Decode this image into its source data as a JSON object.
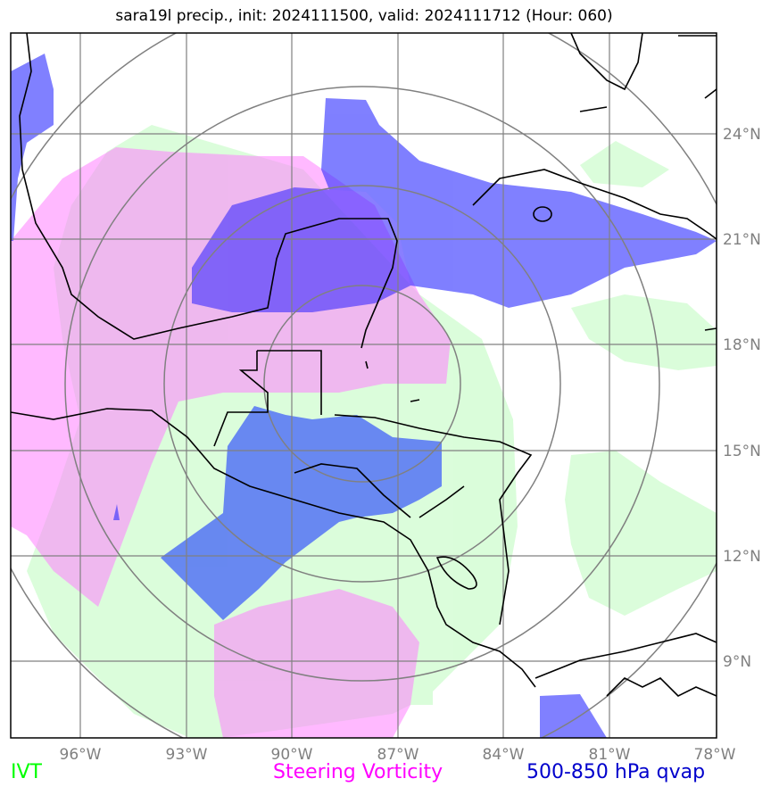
{
  "title": "sara19l precip., init: 2024111500, valid: 2024111712 (Hour: 060)",
  "map": {
    "lon_labels": [
      "96°W",
      "93°W",
      "90°W",
      "87°W",
      "84°W",
      "81°W",
      "78°W"
    ],
    "lat_labels": [
      "24°N",
      "21°N",
      "18°N",
      "15°N",
      "12°N",
      "9°N"
    ],
    "extent": {
      "lon_min": -98,
      "lon_max": -78,
      "lat_min": 7,
      "lat_max": 27
    },
    "fields": [
      {
        "name": "IVT",
        "color": "#d9fdd9"
      },
      {
        "name": "Steering Vorticity",
        "color": "#ff80ff"
      },
      {
        "name": "500-850 hPa qvap",
        "color": "#3333ff"
      }
    ],
    "range_rings": "concentric circles centered near 16.2°N, 87.9°W"
  },
  "legend": {
    "ivt": {
      "label": "IVT",
      "color": "#00ff00"
    },
    "vort": {
      "label": "Steering Vorticity",
      "color": "#ff00ff"
    },
    "qvap": {
      "label": "500-850 hPa qvap",
      "color": "#0000cc"
    }
  }
}
